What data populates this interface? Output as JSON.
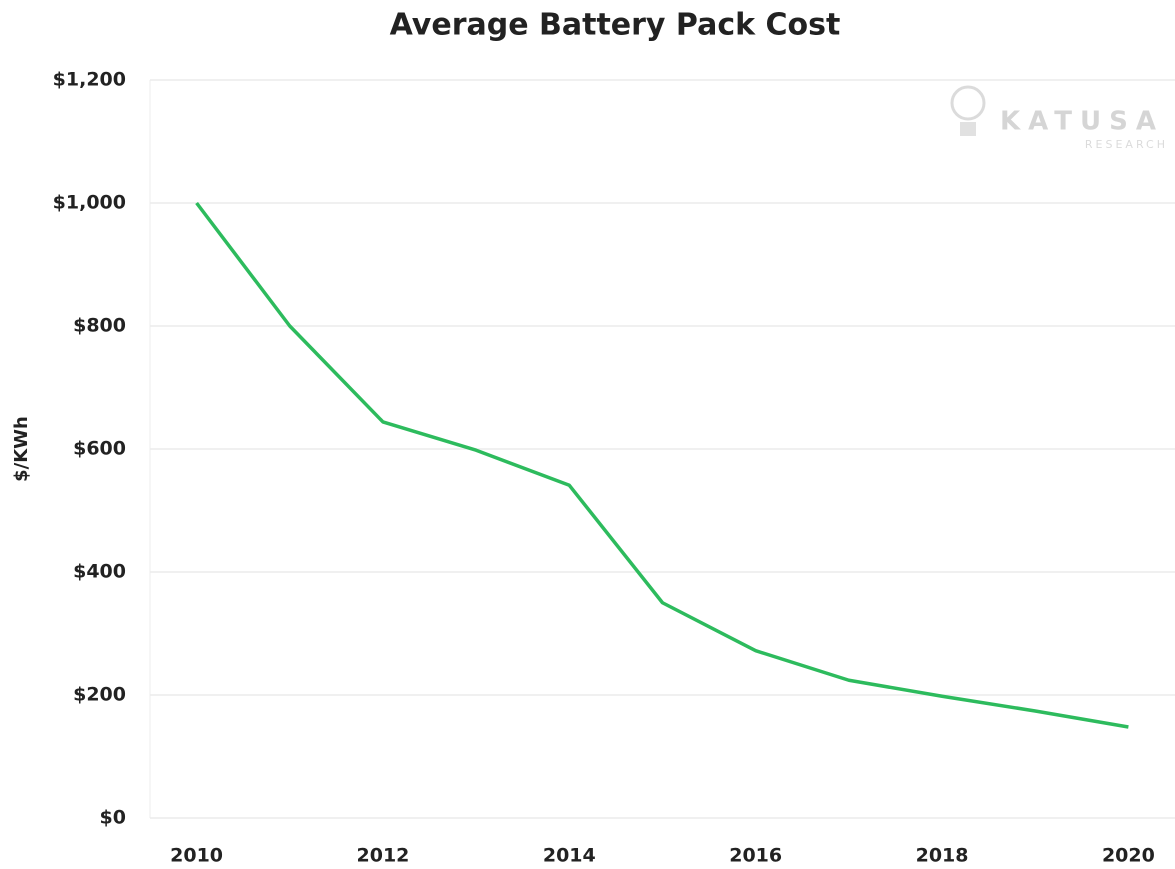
{
  "chart_data": {
    "type": "line",
    "title": "Average Battery Pack Cost",
    "y_label": "$/KWh",
    "watermark": {
      "brand": "KATUSA",
      "sub": "RESEARCH"
    },
    "categories": [
      "2010",
      null,
      "2012",
      null,
      "2014",
      null,
      "2016",
      null,
      "2018",
      null,
      "2020"
    ],
    "series": [
      {
        "name": "Average Battery Pack Cost",
        "color": "#2dbb5d",
        "values": [
          1000,
          800,
          644,
          598,
          541,
          350,
          272,
          224,
          198,
          174,
          148
        ]
      }
    ],
    "ylim": [
      0,
      1200
    ],
    "yticks": [
      {
        "value": 0,
        "label": "$0"
      },
      {
        "value": 200,
        "label": "$200"
      },
      {
        "value": 400,
        "label": "$400"
      },
      {
        "value": 600,
        "label": "$600"
      },
      {
        "value": 800,
        "label": "$800"
      },
      {
        "value": 1000,
        "label": "$1,000"
      },
      {
        "value": 1200,
        "label": "$1,200"
      }
    ],
    "grid": true
  }
}
